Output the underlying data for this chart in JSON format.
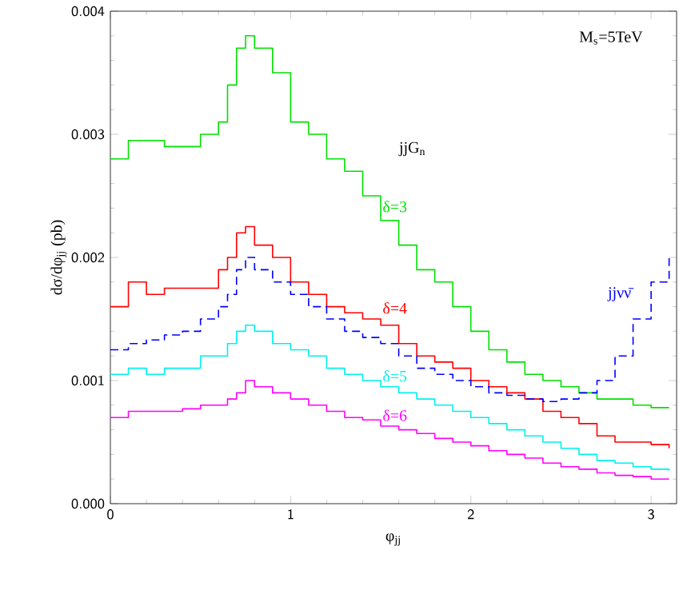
{
  "chart_data": {
    "type": "step",
    "xlabel": "φ$_{jj}$",
    "ylabel": "dσ/dφ$_{jj}$ (pb)",
    "annotations": [
      "M$_{s}$=5TeV",
      "jjG$_{n}$"
    ],
    "x": [
      0,
      0.1,
      0.2,
      0.3,
      0.4,
      0.5,
      0.6,
      0.65,
      0.7,
      0.75,
      0.8,
      0.9,
      1.0,
      1.1,
      1.2,
      1.3,
      1.4,
      1.5,
      1.6,
      1.7,
      1.8,
      1.9,
      2.0,
      2.1,
      2.2,
      2.3,
      2.4,
      2.5,
      2.6,
      2.7,
      2.8,
      2.9,
      3.0,
      3.1
    ],
    "series": [
      {
        "name": "δ=3",
        "color": "#00e000",
        "values": [
          0.0028,
          0.00295,
          0.00295,
          0.0029,
          0.0029,
          0.003,
          0.0031,
          0.0034,
          0.0037,
          0.0038,
          0.0037,
          0.0035,
          0.0031,
          0.003,
          0.0028,
          0.0027,
          0.0025,
          0.0023,
          0.0021,
          0.0019,
          0.0018,
          0.0016,
          0.0014,
          0.00125,
          0.00115,
          0.00105,
          0.001,
          0.00095,
          0.0009,
          0.00085,
          0.00085,
          0.0008,
          0.00078,
          0.00078
        ]
      },
      {
        "name": "δ=4",
        "color": "#ff0000",
        "values": [
          0.0016,
          0.0018,
          0.0017,
          0.00175,
          0.00175,
          0.00175,
          0.0019,
          0.002,
          0.0022,
          0.00225,
          0.0021,
          0.002,
          0.0018,
          0.0017,
          0.0016,
          0.00155,
          0.0015,
          0.00145,
          0.0013,
          0.0012,
          0.00115,
          0.0011,
          0.001,
          0.00095,
          0.0009,
          0.00085,
          0.00075,
          0.0007,
          0.00065,
          0.00055,
          0.0005,
          0.0005,
          0.00048,
          0.00045
        ]
      },
      {
        "name": "δ=5",
        "color": "#00f0f0",
        "values": [
          0.00105,
          0.0011,
          0.00105,
          0.0011,
          0.0011,
          0.0012,
          0.0012,
          0.0013,
          0.0014,
          0.00145,
          0.0014,
          0.0013,
          0.00125,
          0.0012,
          0.0011,
          0.00105,
          0.001,
          0.00095,
          0.0009,
          0.00085,
          0.0008,
          0.00075,
          0.0007,
          0.00065,
          0.0006,
          0.00055,
          0.0005,
          0.00045,
          0.0004,
          0.00035,
          0.00033,
          0.0003,
          0.00028,
          0.00027
        ]
      },
      {
        "name": "δ=6",
        "color": "#ff00ff",
        "values": [
          0.0007,
          0.00075,
          0.00075,
          0.00075,
          0.00077,
          0.0008,
          0.0008,
          0.00085,
          0.0009,
          0.001,
          0.00095,
          0.0009,
          0.00085,
          0.0008,
          0.00075,
          0.0007,
          0.00068,
          0.00063,
          0.0006,
          0.00057,
          0.00053,
          0.0005,
          0.00047,
          0.00043,
          0.0004,
          0.00037,
          0.00033,
          0.0003,
          0.00028,
          0.00025,
          0.00023,
          0.00022,
          0.0002,
          0.0002
        ]
      },
      {
        "name": "jjνν̄",
        "color": "#0000ff",
        "line_style": "dashed",
        "values": [
          0.00125,
          0.0013,
          0.00133,
          0.00137,
          0.0014,
          0.0015,
          0.0016,
          0.0017,
          0.0019,
          0.002,
          0.0019,
          0.0018,
          0.0017,
          0.0016,
          0.0015,
          0.0014,
          0.00135,
          0.0013,
          0.0012,
          0.0011,
          0.00105,
          0.001,
          0.00095,
          0.0009,
          0.00088,
          0.00085,
          0.00083,
          0.00085,
          0.0009,
          0.001,
          0.0012,
          0.0015,
          0.0018,
          0.002
        ]
      }
    ],
    "xlim": [
      0,
      3.1416
    ],
    "xticks": [
      0,
      1,
      2,
      3
    ],
    "ylim": [
      0,
      0.004
    ],
    "yticks": [
      {
        "value": 0,
        "label": "0.000"
      },
      {
        "value": 0.001,
        "label": "0.001"
      },
      {
        "value": 0.002,
        "label": "0.002"
      },
      {
        "value": 0.003,
        "label": "0.003"
      },
      {
        "value": 0.004,
        "label": "0.004"
      }
    ],
    "marker": "none"
  }
}
